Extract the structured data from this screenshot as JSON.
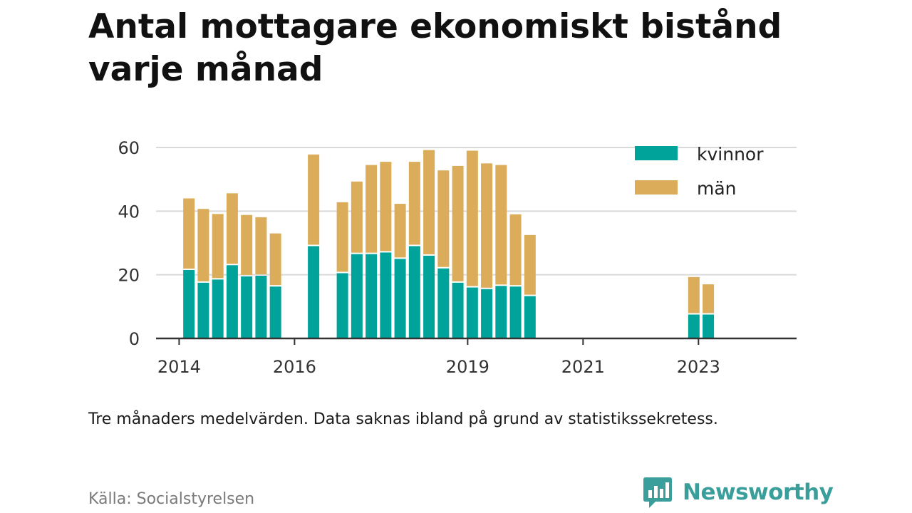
{
  "title": "Antal mottagare ekonomiskt bistånd varje månad",
  "note": "Tre månaders medelvärden. Data saknas ibland på grund av statistikssekretess.",
  "source": "Källa: Socialstyrelsen",
  "brand": {
    "name": "Newsworthy",
    "icon": "bar-chart-speech-bubble-icon",
    "color": "#3a9e9a"
  },
  "colors": {
    "kvinnor": "#00a39a",
    "man": "#dbad5a",
    "grid": "#d9d9d9",
    "axis": "#333333"
  },
  "chart_data": {
    "type": "bar",
    "stacked": true,
    "x_ticks": [
      {
        "label": "2014",
        "x": 2014.0
      },
      {
        "label": "2016",
        "x": 2016.0
      },
      {
        "label": "2019",
        "x": 2019.0
      },
      {
        "label": "2021",
        "x": 2021.0
      },
      {
        "label": "2023",
        "x": 2023.0
      }
    ],
    "y_ticks": [
      0,
      20,
      40,
      60
    ],
    "ylim": [
      0,
      60
    ],
    "xlim": [
      2013.6,
      2024.7
    ],
    "legend": {
      "position": "top-right",
      "entries": [
        {
          "label": "kvinnor",
          "color": "#00a39a"
        },
        {
          "label": "män",
          "color": "#dbad5a"
        }
      ]
    },
    "x": [
      2014.17,
      2014.42,
      2014.67,
      2014.92,
      2015.17,
      2015.42,
      2015.67,
      2016.33,
      2016.83,
      2017.08,
      2017.33,
      2017.58,
      2017.83,
      2018.08,
      2018.33,
      2018.58,
      2018.83,
      2019.08,
      2019.33,
      2019.58,
      2019.83,
      2020.08,
      2022.92,
      2023.17
    ],
    "series": [
      {
        "name": "kvinnor",
        "values": [
          21.5,
          17.5,
          18.5,
          23,
          19.5,
          19.7,
          16.3,
          29,
          20.5,
          26.5,
          26.5,
          27,
          25,
          29,
          26,
          22,
          17.5,
          16,
          15.5,
          16.5,
          16.3,
          13.3,
          7.5,
          7.5
        ]
      },
      {
        "name": "män",
        "values": [
          22.5,
          23.2,
          20.6,
          22.6,
          19.3,
          18.4,
          16.7,
          28.8,
          22.3,
          22.8,
          28,
          28.5,
          17.3,
          26.5,
          33.2,
          30.8,
          36.7,
          43,
          39.5,
          38,
          22.7,
          19.2,
          11.8,
          9.5
        ]
      }
    ]
  }
}
